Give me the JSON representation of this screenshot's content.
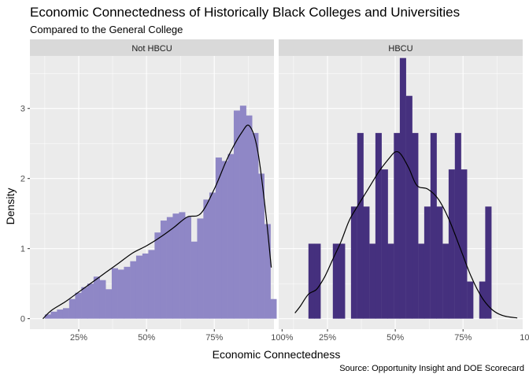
{
  "colors": {
    "panel_bg": "#ebebeb",
    "strip_bg": "#d9d9d9",
    "grid": "#ffffff",
    "not_hbcu_bar": "#8f87c6",
    "hbcu_bar": "#45307e",
    "density_line": "#000000"
  },
  "chart_data": {
    "type": "bar",
    "title": "Economic Connectedness of Historically Black Colleges and Universities",
    "subtitle": "Compared to the General College",
    "xlabel": "Economic Connectedness",
    "ylabel": "Density",
    "caption": "Source: Opportunity Insight and DOE Scorecard",
    "xlim": [
      0.07,
      0.97
    ],
    "ylim": [
      -0.15,
      3.75
    ],
    "x_ticks": [
      0.25,
      0.5,
      0.75,
      1.0
    ],
    "x_tick_labels": [
      "25%",
      "50%",
      "75%",
      "100%"
    ],
    "y_ticks": [
      0,
      1,
      2,
      3
    ],
    "y_tick_labels": [
      "0",
      "1",
      "2",
      "3"
    ],
    "grid": true,
    "bin_width": 0.0225,
    "panels": [
      {
        "name": "Not HBCU",
        "color": "#8f87c6",
        "bins": [
          {
            "x": 0.136,
            "density": 0.06
          },
          {
            "x": 0.158,
            "density": 0.1
          },
          {
            "x": 0.181,
            "density": 0.13
          },
          {
            "x": 0.203,
            "density": 0.15
          },
          {
            "x": 0.226,
            "density": 0.28
          },
          {
            "x": 0.248,
            "density": 0.37
          },
          {
            "x": 0.271,
            "density": 0.45
          },
          {
            "x": 0.293,
            "density": 0.5
          },
          {
            "x": 0.316,
            "density": 0.6
          },
          {
            "x": 0.338,
            "density": 0.55
          },
          {
            "x": 0.361,
            "density": 0.42
          },
          {
            "x": 0.383,
            "density": 0.72
          },
          {
            "x": 0.406,
            "density": 0.7
          },
          {
            "x": 0.428,
            "density": 0.74
          },
          {
            "x": 0.451,
            "density": 0.82
          },
          {
            "x": 0.473,
            "density": 0.9
          },
          {
            "x": 0.496,
            "density": 0.93
          },
          {
            "x": 0.518,
            "density": 0.98
          },
          {
            "x": 0.541,
            "density": 1.23
          },
          {
            "x": 0.563,
            "density": 1.4
          },
          {
            "x": 0.586,
            "density": 1.45
          },
          {
            "x": 0.608,
            "density": 1.5
          },
          {
            "x": 0.631,
            "density": 1.52
          },
          {
            "x": 0.653,
            "density": 1.45
          },
          {
            "x": 0.676,
            "density": 1.1
          },
          {
            "x": 0.698,
            "density": 1.43
          },
          {
            "x": 0.721,
            "density": 1.7
          },
          {
            "x": 0.743,
            "density": 1.8
          },
          {
            "x": 0.766,
            "density": 2.3
          },
          {
            "x": 0.788,
            "density": 2.25
          },
          {
            "x": 0.811,
            "density": 2.35
          },
          {
            "x": 0.833,
            "density": 2.97
          },
          {
            "x": 0.856,
            "density": 3.04
          },
          {
            "x": 0.878,
            "density": 2.9
          },
          {
            "x": 0.901,
            "density": 2.65
          },
          {
            "x": 0.923,
            "density": 2.07
          },
          {
            "x": 0.946,
            "density": 1.35
          },
          {
            "x": 0.968,
            "density": 0.28
          }
        ],
        "density_curve": {
          "x": [
            0.118,
            0.15,
            0.2,
            0.25,
            0.3,
            0.35,
            0.4,
            0.45,
            0.5,
            0.55,
            0.6,
            0.65,
            0.7,
            0.75,
            0.8,
            0.85,
            0.88,
            0.91,
            0.94,
            0.96
          ],
          "y": [
            0.0,
            0.12,
            0.24,
            0.38,
            0.52,
            0.66,
            0.8,
            0.94,
            1.04,
            1.16,
            1.3,
            1.45,
            1.5,
            1.85,
            2.3,
            2.65,
            2.75,
            2.4,
            1.5,
            0.73
          ]
        }
      },
      {
        "name": "HBCU",
        "color": "#45307e",
        "bins": [
          {
            "x": 0.191,
            "density": 1.07
          },
          {
            "x": 0.213,
            "density": 1.07
          },
          {
            "x": 0.281,
            "density": 1.07
          },
          {
            "x": 0.303,
            "density": 1.07
          },
          {
            "x": 0.348,
            "density": 1.6
          },
          {
            "x": 0.371,
            "density": 2.65
          },
          {
            "x": 0.393,
            "density": 1.6
          },
          {
            "x": 0.416,
            "density": 1.07
          },
          {
            "x": 0.438,
            "density": 2.65
          },
          {
            "x": 0.461,
            "density": 2.13
          },
          {
            "x": 0.483,
            "density": 1.07
          },
          {
            "x": 0.506,
            "density": 2.65
          },
          {
            "x": 0.528,
            "density": 3.72
          },
          {
            "x": 0.551,
            "density": 3.18
          },
          {
            "x": 0.573,
            "density": 2.65
          },
          {
            "x": 0.596,
            "density": 1.07
          },
          {
            "x": 0.618,
            "density": 1.6
          },
          {
            "x": 0.641,
            "density": 2.65
          },
          {
            "x": 0.663,
            "density": 1.6
          },
          {
            "x": 0.686,
            "density": 1.07
          },
          {
            "x": 0.708,
            "density": 2.13
          },
          {
            "x": 0.731,
            "density": 2.65
          },
          {
            "x": 0.753,
            "density": 2.13
          },
          {
            "x": 0.776,
            "density": 0.53
          },
          {
            "x": 0.821,
            "density": 0.53
          },
          {
            "x": 0.843,
            "density": 1.6
          }
        ],
        "density_curve": {
          "x": [
            0.13,
            0.15,
            0.18,
            0.21,
            0.24,
            0.27,
            0.3,
            0.33,
            0.36,
            0.4,
            0.44,
            0.48,
            0.5,
            0.52,
            0.55,
            0.58,
            0.62,
            0.66,
            0.7,
            0.74,
            0.78,
            0.82,
            0.86,
            0.9,
            0.95
          ],
          "y": [
            0.08,
            0.18,
            0.35,
            0.42,
            0.6,
            0.85,
            1.1,
            1.4,
            1.6,
            1.85,
            2.1,
            2.3,
            2.38,
            2.35,
            2.15,
            1.9,
            1.85,
            1.7,
            1.4,
            1.0,
            0.6,
            0.3,
            0.12,
            0.04,
            0.01
          ]
        }
      }
    ]
  }
}
